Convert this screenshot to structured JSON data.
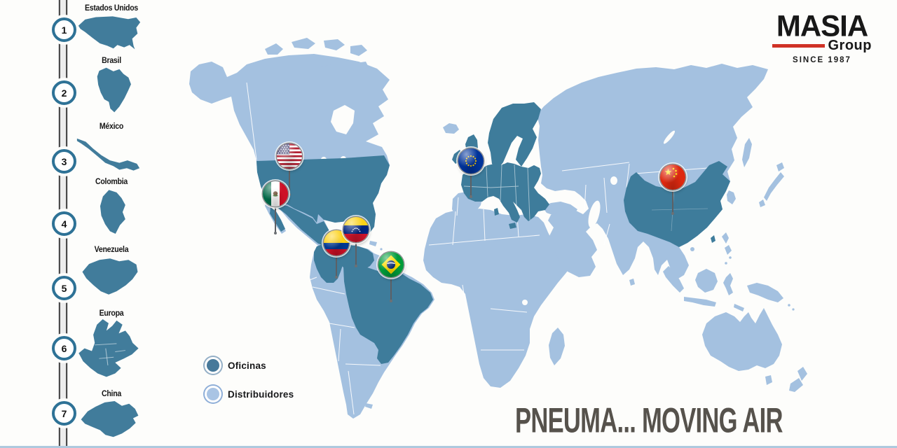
{
  "brand": {
    "name": "MASIA",
    "sub": "Group",
    "since": "SINCE 1987"
  },
  "tagline": "PNEUMA... MOVING AIR",
  "sidebar": {
    "items": [
      {
        "num": "1",
        "label": "Estados Unidos",
        "key": "usa"
      },
      {
        "num": "2",
        "label": "Brasil",
        "key": "brasil"
      },
      {
        "num": "3",
        "label": "México",
        "key": "mexico"
      },
      {
        "num": "4",
        "label": "Colombia",
        "key": "colombia"
      },
      {
        "num": "5",
        "label": "Venezuela",
        "key": "venezuela"
      },
      {
        "num": "6",
        "label": "Europa",
        "key": "europa"
      },
      {
        "num": "7",
        "label": "China",
        "key": "china"
      }
    ]
  },
  "legend": {
    "items": [
      {
        "label": "Oficinas",
        "type": "oficinas"
      },
      {
        "label": "Distribuidores",
        "type": "distribuidores"
      }
    ]
  },
  "map": {
    "pins": [
      {
        "id": "usa",
        "icon": "usa-flag-pin"
      },
      {
        "id": "mexico",
        "icon": "mexico-flag-pin"
      },
      {
        "id": "colombia",
        "icon": "colombia-flag-pin"
      },
      {
        "id": "venezuela",
        "icon": "venezuela-flag-pin"
      },
      {
        "id": "brazil",
        "icon": "brazil-flag-pin"
      },
      {
        "id": "europa",
        "icon": "eu-flag-pin"
      },
      {
        "id": "china",
        "icon": "china-flag-pin"
      }
    ]
  },
  "colors": {
    "office": "#3E7C9B",
    "distributor": "#A4C1E0",
    "sidebar_teal": "#417C9B",
    "accent_red": "#D03226",
    "tagline_gray": "#56524C"
  }
}
